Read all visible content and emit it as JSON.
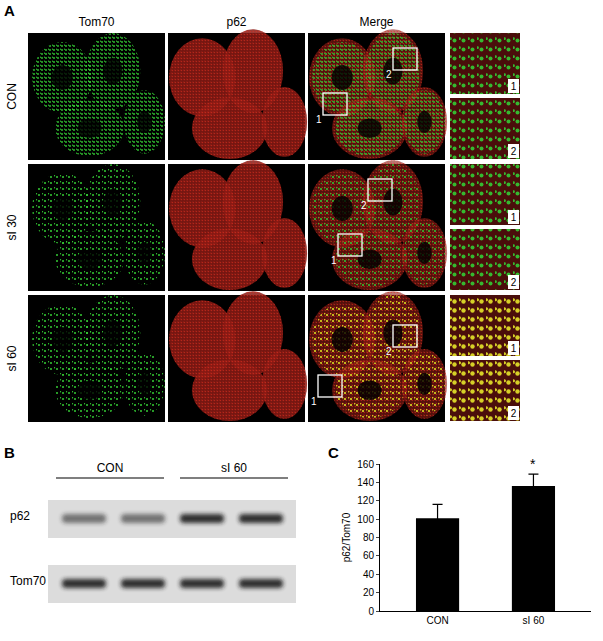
{
  "figure": {
    "A": {
      "label": "A",
      "columns": [
        "Tom70",
        "p62",
        "Merge"
      ],
      "rows": [
        "CON",
        "sI 30",
        "sI 60"
      ],
      "box_labels": [
        "1",
        "2"
      ],
      "inset_labels": [
        "1",
        "2"
      ]
    },
    "B": {
      "label": "B",
      "groups": [
        "CON",
        "sI 60"
      ],
      "bands": [
        "p62",
        "Tom70"
      ]
    },
    "C": {
      "label": "C"
    }
  },
  "chart_data": {
    "type": "bar",
    "categories": [
      "CON",
      "sI 60"
    ],
    "values": [
      101,
      136
    ],
    "error": [
      15,
      13
    ],
    "color": "#000000",
    "y_label": "p62/Tom70",
    "ylim": [
      0,
      160
    ],
    "yticks": [
      0,
      20,
      40,
      60,
      80,
      100,
      120,
      140,
      160
    ],
    "grid": false,
    "annotations": [
      {
        "category": "sI 60",
        "text": "*"
      }
    ]
  }
}
